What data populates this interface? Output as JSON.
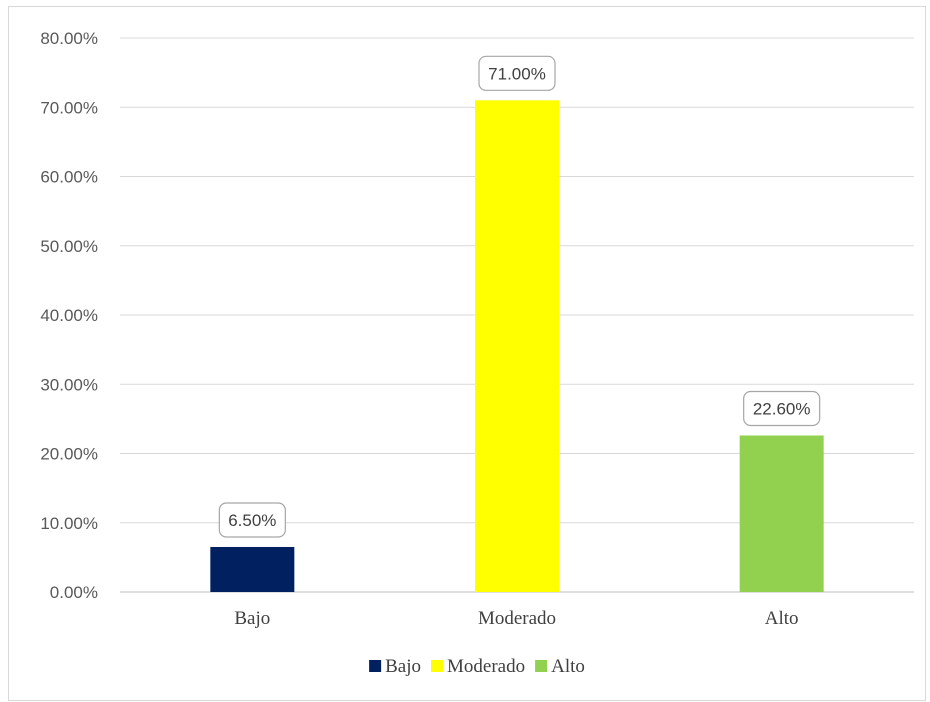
{
  "chart_data": {
    "type": "bar",
    "title": "",
    "xlabel": "",
    "ylabel": "",
    "categories": [
      "Bajo",
      "Moderado",
      "Alto"
    ],
    "values": [
      6.5,
      71.0,
      22.6
    ],
    "value_labels": [
      "6.50%",
      "71.00%",
      "22.60%"
    ],
    "colors": [
      "#002060",
      "#ffff00",
      "#92d050"
    ],
    "ylim": [
      0,
      80
    ],
    "yticks": [
      0,
      10,
      20,
      30,
      40,
      50,
      60,
      70,
      80
    ],
    "ytick_labels": [
      "0.00%",
      "10.00%",
      "20.00%",
      "30.00%",
      "40.00%",
      "50.00%",
      "60.00%",
      "70.00%",
      "80.00%"
    ],
    "grid": true,
    "legend": {
      "position": "bottom",
      "entries": [
        "Bajo",
        "Moderado",
        "Alto"
      ]
    }
  }
}
